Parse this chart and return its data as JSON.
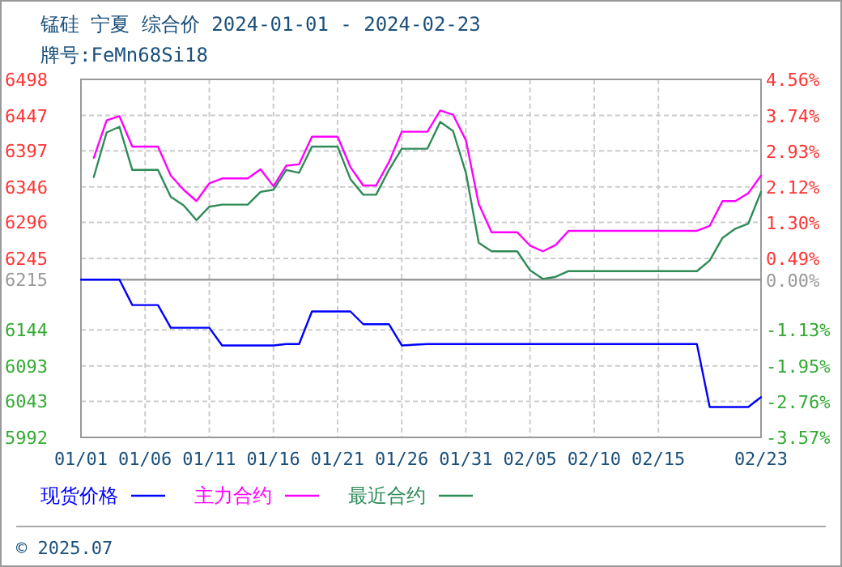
{
  "chart_data": {
    "type": "line",
    "title": "锰硅 宁夏 综合价 2024-01-01 - 2024-02-23",
    "subtitle": "牌号:FeMn68Si18",
    "xlim": [
      "2024-01-01",
      "2024-02-23"
    ],
    "xticks": [
      {
        "value": "2024-01-01",
        "label": "01/01"
      },
      {
        "value": "2024-01-06",
        "label": "01/06"
      },
      {
        "value": "2024-01-11",
        "label": "01/11"
      },
      {
        "value": "2024-01-16",
        "label": "01/16"
      },
      {
        "value": "2024-01-21",
        "label": "01/21"
      },
      {
        "value": "2024-01-26",
        "label": "01/26"
      },
      {
        "value": "2024-01-31",
        "label": "01/31"
      },
      {
        "value": "2024-02-05",
        "label": "02/05"
      },
      {
        "value": "2024-02-10",
        "label": "02/10"
      },
      {
        "value": "2024-02-15",
        "label": "02/15"
      },
      {
        "value": "2024-02-23",
        "label": "02/23"
      }
    ],
    "ylim": [
      5992,
      6498
    ],
    "yticks": [
      5992,
      6043,
      6093,
      6144,
      6215,
      6245,
      6296,
      6346,
      6397,
      6447,
      6498
    ],
    "y2lim": [
      -3.57,
      4.56
    ],
    "y2ticks": [
      {
        "value": -3.57,
        "label": "-3.57%"
      },
      {
        "value": -2.76,
        "label": "-2.76%"
      },
      {
        "value": -1.95,
        "label": "-1.95%"
      },
      {
        "value": -1.13,
        "label": "-1.13%"
      },
      {
        "value": 0,
        "label": "0.00%"
      },
      {
        "value": 0.49,
        "label": "0.49%"
      },
      {
        "value": 1.3,
        "label": "1.30%"
      },
      {
        "value": 2.12,
        "label": "2.12%"
      },
      {
        "value": 2.93,
        "label": "2.93%"
      },
      {
        "value": 3.74,
        "label": "3.74%"
      },
      {
        "value": 4.56,
        "label": "4.56%"
      }
    ],
    "ref_lines": [
      {
        "axis": "y",
        "value": 6215,
        "color": "#999999"
      }
    ],
    "grid": true,
    "legend": "bottom",
    "line_style": "solid",
    "series": [
      {
        "name": "现货价格",
        "color": "#0000ff",
        "x": [
          "2024-01-01",
          "2024-01-04",
          "2024-01-05",
          "2024-01-07",
          "2024-01-08",
          "2024-01-11",
          "2024-01-12",
          "2024-01-16",
          "2024-01-17",
          "2024-01-18",
          "2024-01-19",
          "2024-01-22",
          "2024-01-23",
          "2024-01-25",
          "2024-01-26",
          "2024-01-28",
          "2024-02-18",
          "2024-02-19",
          "2024-02-22",
          "2024-02-23"
        ],
        "values": [
          6215,
          6215,
          6179,
          6179,
          6147,
          6147,
          6122,
          6122,
          6124,
          6124,
          6170,
          6170,
          6152,
          6152,
          6122,
          6124,
          6124,
          6035,
          6035,
          6049
        ]
      },
      {
        "name": "主力合约",
        "color": "#ff00ff",
        "x": [
          "2024-01-02",
          "2024-01-03",
          "2024-01-04",
          "2024-01-05",
          "2024-01-07",
          "2024-01-08",
          "2024-01-09",
          "2024-01-10",
          "2024-01-11",
          "2024-01-12",
          "2024-01-14",
          "2024-01-15",
          "2024-01-16",
          "2024-01-17",
          "2024-01-18",
          "2024-01-19",
          "2024-01-21",
          "2024-01-22",
          "2024-01-23",
          "2024-01-24",
          "2024-01-25",
          "2024-01-26",
          "2024-01-28",
          "2024-01-29",
          "2024-01-30",
          "2024-01-31",
          "2024-02-01",
          "2024-02-02",
          "2024-02-04",
          "2024-02-05",
          "2024-02-06",
          "2024-02-07",
          "2024-02-08",
          "2024-02-18",
          "2024-02-19",
          "2024-02-20",
          "2024-02-21",
          "2024-02-22",
          "2024-02-23"
        ],
        "values": [
          6387,
          6440,
          6446,
          6403,
          6403,
          6362,
          6342,
          6326,
          6351,
          6358,
          6358,
          6371,
          6347,
          6376,
          6378,
          6417,
          6417,
          6374,
          6348,
          6348,
          6381,
          6424,
          6424,
          6454,
          6448,
          6412,
          6322,
          6282,
          6282,
          6263,
          6255,
          6264,
          6284,
          6284,
          6291,
          6326,
          6326,
          6337,
          6362
        ]
      },
      {
        "name": "最近合约",
        "color": "#2e8b57",
        "x": [
          "2024-01-02",
          "2024-01-03",
          "2024-01-04",
          "2024-01-05",
          "2024-01-07",
          "2024-01-08",
          "2024-01-09",
          "2024-01-10",
          "2024-01-11",
          "2024-01-12",
          "2024-01-14",
          "2024-01-15",
          "2024-01-16",
          "2024-01-17",
          "2024-01-18",
          "2024-01-19",
          "2024-01-21",
          "2024-01-22",
          "2024-01-23",
          "2024-01-24",
          "2024-01-25",
          "2024-01-26",
          "2024-01-28",
          "2024-01-29",
          "2024-01-30",
          "2024-01-31",
          "2024-02-01",
          "2024-02-02",
          "2024-02-04",
          "2024-02-05",
          "2024-02-06",
          "2024-02-07",
          "2024-02-08",
          "2024-02-18",
          "2024-02-19",
          "2024-02-20",
          "2024-02-21",
          "2024-02-22",
          "2024-02-23"
        ],
        "values": [
          6360,
          6423,
          6431,
          6370,
          6370,
          6332,
          6320,
          6299,
          6318,
          6321,
          6321,
          6339,
          6342,
          6370,
          6366,
          6403,
          6403,
          6357,
          6335,
          6335,
          6370,
          6400,
          6400,
          6438,
          6425,
          6366,
          6267,
          6255,
          6255,
          6228,
          6216,
          6219,
          6227,
          6227,
          6242,
          6274,
          6287,
          6294,
          6339
        ]
      }
    ],
    "annotations": [
      "© 2025.07"
    ]
  }
}
